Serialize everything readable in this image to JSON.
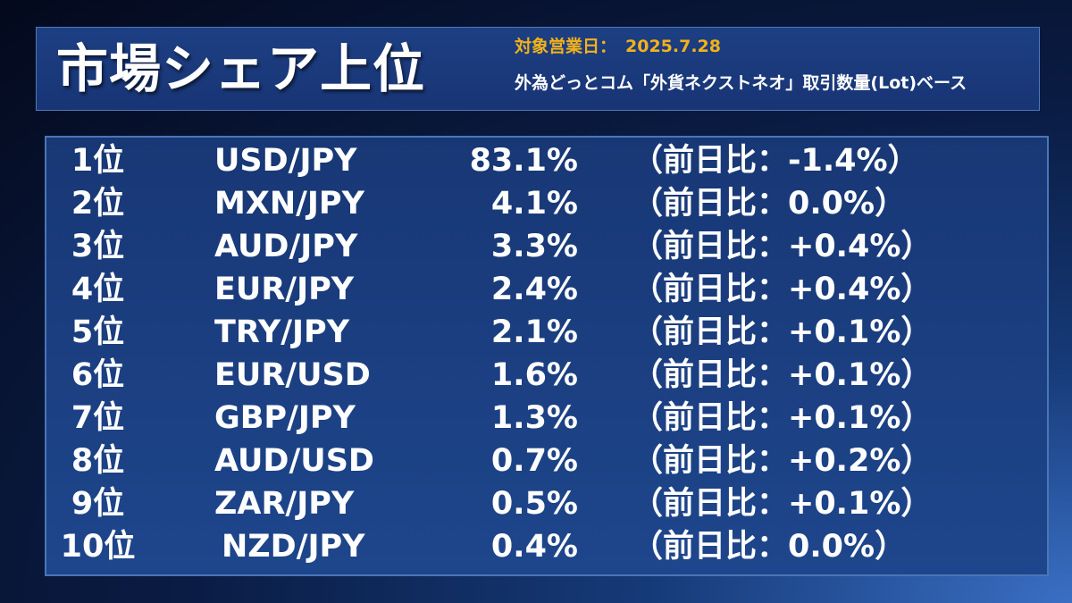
{
  "header": {
    "title": "市場シェア上位",
    "date_label": "対象営業日：",
    "date_value": "2025.7.28",
    "subtitle": "外為どっとコム「外貨ネクストネオ」取引数量(Lot)ベース"
  },
  "rows": [
    {
      "rank": "1位",
      "pair": "USD/JPY",
      "share": "83.1%",
      "change": "（前日比：-1.4%）"
    },
    {
      "rank": "2位",
      "pair": "MXN/JPY",
      "share": "4.1%",
      "change": "（前日比：0.0%）"
    },
    {
      "rank": "3位",
      "pair": "AUD/JPY",
      "share": "3.3%",
      "change": "（前日比：+0.4%）"
    },
    {
      "rank": "4位",
      "pair": "EUR/JPY",
      "share": "2.4%",
      "change": "（前日比：+0.4%）"
    },
    {
      "rank": "5位",
      "pair": "TRY/JPY",
      "share": "2.1%",
      "change": "（前日比：+0.1%）"
    },
    {
      "rank": "6位",
      "pair": "EUR/USD",
      "share": "1.6%",
      "change": "（前日比：+0.1%）"
    },
    {
      "rank": "7位",
      "pair": "GBP/JPY",
      "share": "1.3%",
      "change": "（前日比：+0.1%）"
    },
    {
      "rank": "8位",
      "pair": "AUD/USD",
      "share": "0.7%",
      "change": "（前日比：+0.2%）"
    },
    {
      "rank": "9位",
      "pair": "ZAR/JPY",
      "share": "0.5%",
      "change": "（前日比：+0.1%）"
    },
    {
      "rank": "10位",
      "pair": "NZD/JPY",
      "share": "0.4%",
      "change": "（前日比：0.0%）"
    }
  ],
  "colors": {
    "accent_date": "#f2b21a",
    "panel": "#183775",
    "border": "#4a76b6"
  }
}
